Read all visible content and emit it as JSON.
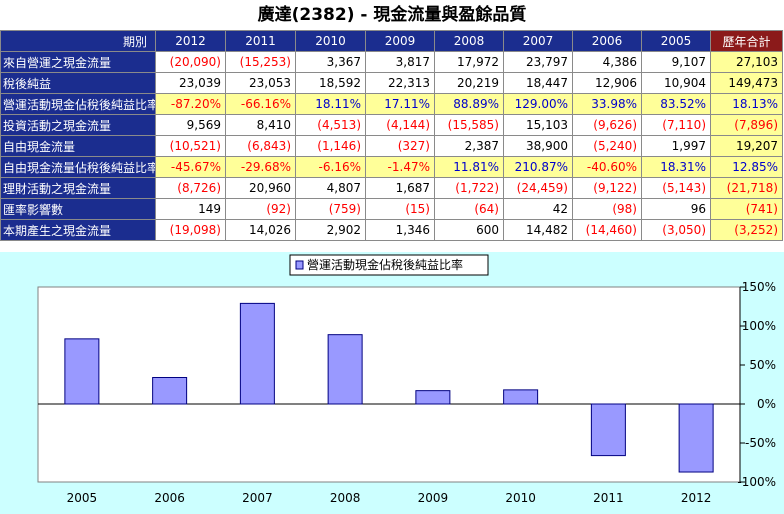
{
  "title": "廣達(2382) -  現金流量與盈餘品質",
  "table": {
    "corner": "期別",
    "years": [
      "2012",
      "2011",
      "2010",
      "2009",
      "2008",
      "2007",
      "2006",
      "2005"
    ],
    "total_header": "歷年合計",
    "rows": [
      {
        "label": "來自營運之現金流量",
        "values": [
          "(20,090)",
          "(15,253)",
          "3,367",
          "3,817",
          "17,972",
          "23,797",
          "4,386",
          "9,107"
        ],
        "total": "27,103",
        "highlight": false,
        "ratio": false
      },
      {
        "label": "稅後純益",
        "values": [
          "23,039",
          "23,053",
          "18,592",
          "22,313",
          "20,219",
          "18,447",
          "12,906",
          "10,904"
        ],
        "total": "149,473",
        "highlight": false,
        "ratio": false
      },
      {
        "label": "營運活動現金佔稅後純益比率",
        "values": [
          "-87.20%",
          "-66.16%",
          "18.11%",
          "17.11%",
          "88.89%",
          "129.00%",
          "33.98%",
          "83.52%"
        ],
        "total": "18.13%",
        "highlight": true,
        "ratio": true
      },
      {
        "label": "投資活動之現金流量",
        "values": [
          "9,569",
          "8,410",
          "(4,513)",
          "(4,144)",
          "(15,585)",
          "15,103",
          "(9,626)",
          "(7,110)"
        ],
        "total": "(7,896)",
        "highlight": false,
        "ratio": false
      },
      {
        "label": "自由現金流量",
        "values": [
          "(10,521)",
          "(6,843)",
          "(1,146)",
          "(327)",
          "2,387",
          "38,900",
          "(5,240)",
          "1,997"
        ],
        "total": "19,207",
        "highlight": false,
        "ratio": false
      },
      {
        "label": "自由現金流量佔稅後純益比率",
        "values": [
          "-45.67%",
          "-29.68%",
          "-6.16%",
          "-1.47%",
          "11.81%",
          "210.87%",
          "-40.60%",
          "18.31%"
        ],
        "total": "12.85%",
        "highlight": true,
        "ratio": true
      },
      {
        "label": "理財活動之現金流量",
        "values": [
          "(8,726)",
          "20,960",
          "4,807",
          "1,687",
          "(1,722)",
          "(24,459)",
          "(9,122)",
          "(5,143)"
        ],
        "total": "(21,718)",
        "highlight": false,
        "ratio": false
      },
      {
        "label": "匯率影響數",
        "values": [
          "149",
          "(92)",
          "(759)",
          "(15)",
          "(64)",
          "42",
          "(98)",
          "96"
        ],
        "total": "(741)",
        "highlight": false,
        "ratio": false
      },
      {
        "label": "本期產生之現金流量",
        "values": [
          "(19,098)",
          "14,026",
          "2,902",
          "1,346",
          "600",
          "14,482",
          "(14,460)",
          "(3,050)"
        ],
        "total": "(3,252)",
        "highlight": false,
        "ratio": false
      }
    ]
  },
  "chart_data": {
    "type": "bar",
    "title": "",
    "legend": "營運活動現金佔稅後純益比率",
    "categories": [
      "2005",
      "2006",
      "2007",
      "2008",
      "2009",
      "2010",
      "2011",
      "2012"
    ],
    "series": [
      {
        "name": "營運活動現金佔稅後純益比率",
        "values": [
          83.52,
          33.98,
          129.0,
          88.89,
          17.11,
          18.11,
          -66.16,
          -87.2
        ]
      }
    ],
    "yticks": [
      "150%",
      "100%",
      "50%",
      "0%",
      "-50%",
      "-100%"
    ],
    "ylim": [
      -100,
      150
    ],
    "xlabel": "",
    "ylabel": "",
    "colors": {
      "bar": "#9999ff",
      "bar_stroke": "#000080",
      "background": "#ccffff",
      "plot": "#ffffff"
    }
  }
}
